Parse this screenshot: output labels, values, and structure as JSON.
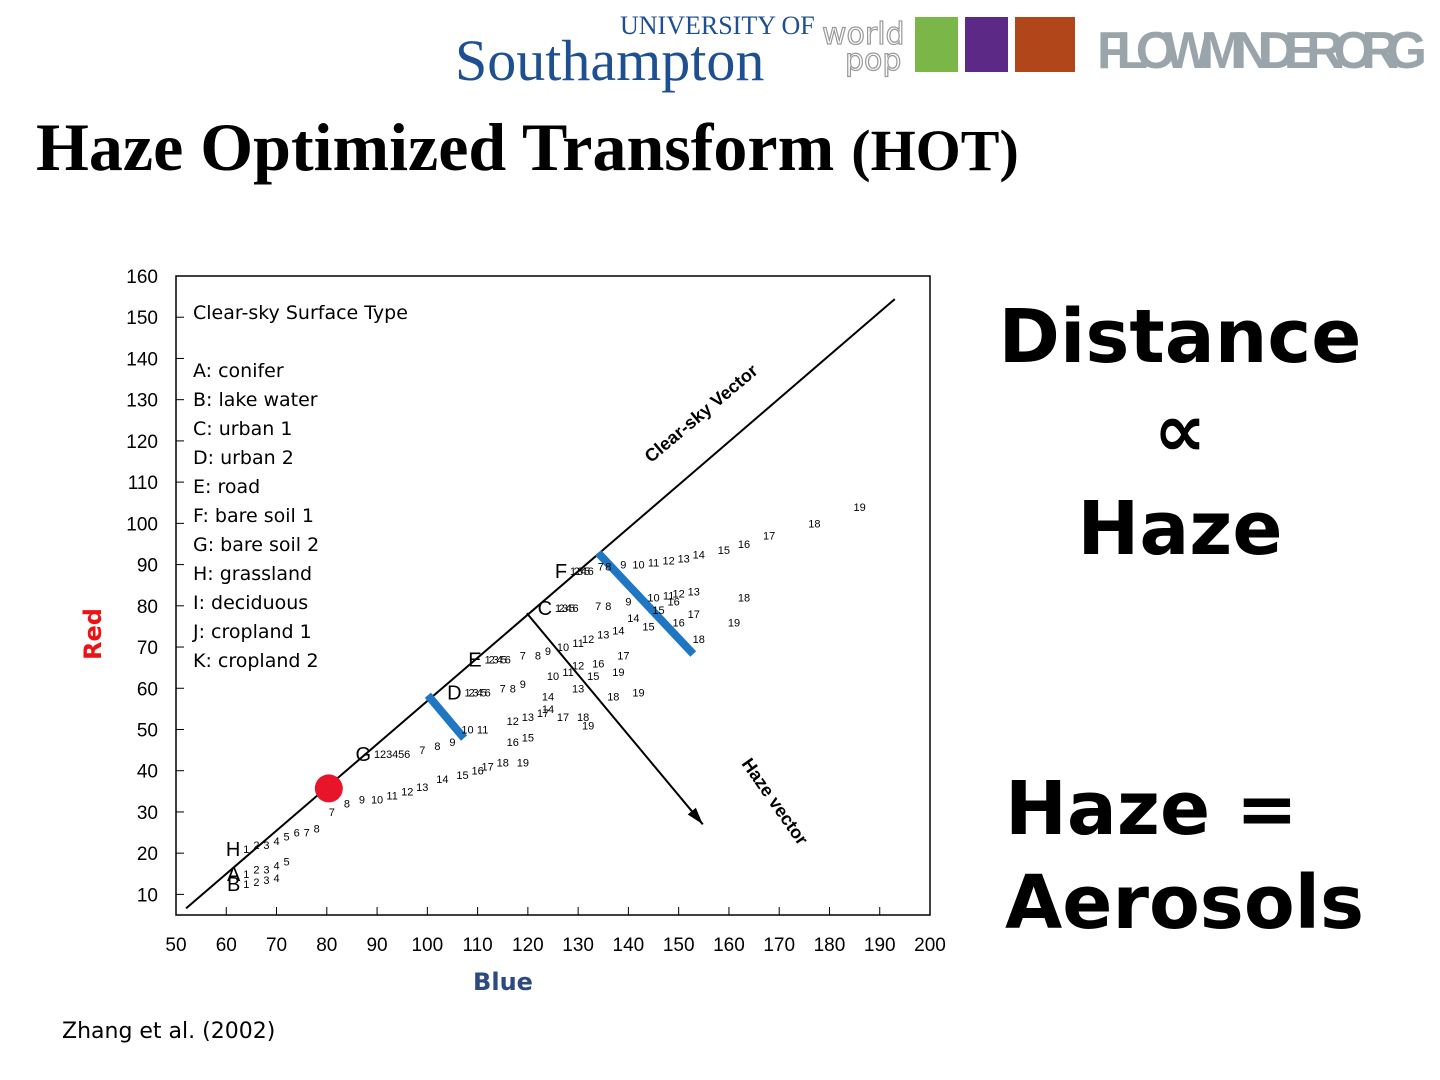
{
  "header": {
    "university_of": "UNIVERSITY OF",
    "southampton": "Southampton",
    "world": "world",
    "pop": "pop",
    "flowminder": "FLOWMINDER.ORG"
  },
  "title": "Haze Optimized Transform",
  "title_abbr": "(HOT)",
  "statement_1": [
    "Distance",
    "∝",
    "Haze"
  ],
  "statement_2": [
    "Haze =",
    "Aerosols"
  ],
  "citation": "Zhang et al. (2002)",
  "chart_data": {
    "type": "scatter",
    "xlabel": "Blue",
    "ylabel": "Red",
    "xlim": [
      50,
      200
    ],
    "ylim": [
      5,
      160
    ],
    "xticks": [
      50,
      60,
      70,
      80,
      90,
      100,
      110,
      120,
      130,
      140,
      150,
      160,
      170,
      180,
      190,
      200
    ],
    "yticks": [
      10,
      20,
      30,
      40,
      50,
      60,
      70,
      80,
      90,
      100,
      110,
      120,
      130,
      140,
      150,
      160
    ],
    "legend_title": "Clear-sky Surface Type",
    "legend_items": [
      "A: conifer",
      "B: lake water",
      "C: urban 1",
      "D: urban 2",
      "E: road",
      "F: bare soil 1",
      "G: bare soil 2",
      "H: grassland",
      "I: deciduous",
      "J: cropland 1",
      "K: cropland 2"
    ],
    "series": [
      {
        "name": "F",
        "labels": [
          "1",
          "2",
          "3",
          "4",
          "5",
          "6",
          "7",
          "8",
          "9",
          "10",
          "11",
          "12",
          "13",
          "14",
          "15",
          "16",
          "17",
          "18",
          "19"
        ],
        "x": [
          129,
          129.7,
          130.4,
          131.1,
          131.8,
          132.5,
          134.5,
          136,
          139,
          142,
          145,
          148,
          151,
          154,
          159,
          163,
          168,
          177,
          186
        ],
        "values": [
          88.5,
          88.5,
          88.5,
          88.5,
          88.5,
          88.5,
          89.5,
          89.5,
          90,
          90,
          90.5,
          91,
          91.5,
          92.5,
          93.5,
          95,
          97,
          100,
          104
        ]
      },
      {
        "name": "C",
        "labels": [
          "1",
          "2",
          "3",
          "4",
          "5",
          "6",
          "7",
          "8",
          "9",
          "10",
          "11",
          "12",
          "13",
          "14",
          "15",
          "16",
          "17",
          "18",
          "19"
        ],
        "x": [
          126,
          126.7,
          127.4,
          128.1,
          128.8,
          129.5,
          134,
          136,
          140,
          145,
          148,
          150,
          153,
          141,
          146,
          149,
          153,
          163,
          161
        ],
        "values": [
          79.5,
          79.5,
          79.5,
          79.5,
          79.5,
          79.5,
          80,
          80,
          81,
          82,
          82.5,
          83,
          83.5,
          77,
          79,
          81,
          78,
          82,
          76
        ]
      },
      {
        "name": "E",
        "labels": [
          "1",
          "2",
          "3",
          "4",
          "5",
          "6",
          "7",
          "8",
          "9",
          "10",
          "11",
          "12",
          "13",
          "14",
          "15",
          "16",
          "17",
          "18",
          "19"
        ],
        "x": [
          112,
          112.8,
          113.6,
          114.4,
          115.2,
          116,
          119,
          122,
          124,
          127,
          130,
          132,
          135,
          138,
          144,
          150,
          139,
          154,
          138
        ],
        "values": [
          67,
          67,
          67,
          67,
          67,
          67,
          68,
          68,
          69,
          70,
          71,
          72,
          73,
          74,
          75,
          76,
          68,
          72,
          64
        ]
      },
      {
        "name": "D",
        "labels": [
          "1",
          "2",
          "3",
          "4",
          "5",
          "6",
          "7",
          "8",
          "9",
          "10",
          "11",
          "12",
          "13",
          "14",
          "15",
          "16",
          "17",
          "18",
          "19"
        ],
        "x": [
          108,
          108.8,
          109.6,
          110.4,
          111.2,
          112,
          115,
          117,
          119,
          125,
          128,
          130,
          130,
          124,
          133,
          134,
          127,
          137,
          142
        ],
        "values": [
          59,
          59,
          59,
          59,
          59,
          59,
          60,
          60,
          61,
          63,
          64,
          65.5,
          60,
          58,
          63,
          66,
          53,
          58,
          59
        ]
      },
      {
        "name": "G",
        "labels": [
          "1",
          "2",
          "3",
          "4",
          "5",
          "6",
          "7",
          "8",
          "9",
          "10",
          "11",
          "12",
          "13",
          "14",
          "15",
          "16",
          "17",
          "18",
          "19"
        ],
        "x": [
          90,
          91.2,
          92.4,
          93.6,
          94.8,
          96,
          99,
          102,
          105,
          108,
          111,
          117,
          120,
          124,
          120,
          117,
          123,
          131,
          132
        ],
        "values": [
          44,
          44,
          44,
          44,
          44,
          44,
          45,
          46,
          47,
          50,
          50,
          52,
          53,
          55,
          48,
          47,
          54,
          53,
          51
        ]
      },
      {
        "labels": [
          "7",
          "8",
          "9",
          "10",
          "11",
          "12",
          "13",
          "14",
          "15",
          "16",
          "17",
          "18",
          "19"
        ],
        "x": [
          81,
          84,
          87,
          90,
          93,
          96,
          99,
          103,
          107,
          110,
          112,
          115,
          119
        ],
        "values": [
          30,
          32,
          33,
          33,
          34,
          35,
          36,
          38,
          39,
          40,
          41,
          42,
          42
        ]
      },
      {
        "name": "H",
        "labels": [
          "1",
          "2",
          "3",
          "4",
          "5",
          "6",
          "7",
          "8"
        ],
        "x": [
          64,
          66,
          68,
          70,
          72,
          74,
          76,
          78
        ],
        "values": [
          21,
          22,
          22,
          23,
          24,
          25,
          25,
          26
        ]
      },
      {
        "name": "A",
        "labels": [
          "1",
          "2",
          "3",
          "4",
          "5"
        ],
        "x": [
          64,
          66,
          68,
          70,
          72
        ],
        "values": [
          15,
          16,
          16,
          17,
          18
        ]
      },
      {
        "name": "B",
        "labels": [
          "1",
          "2",
          "3",
          "4"
        ],
        "x": [
          64,
          66,
          68,
          70
        ],
        "values": [
          12.5,
          13,
          13.5,
          14
        ]
      }
    ],
    "lines": [
      {
        "name": "Clear-sky Vector",
        "color": "#000000",
        "x": [
          52,
          193
        ],
        "values": [
          6.6,
          154.4
        ]
      },
      {
        "name": "Haze vector",
        "color": "#000000",
        "arrow": true,
        "x": [
          119.8,
          154.8
        ],
        "values": [
          78.2,
          27
        ]
      },
      {
        "color": "#1f77c4",
        "x": [
          100.1,
          107.3
        ],
        "values": [
          58.3,
          47.9
        ]
      },
      {
        "color": "#1f77c4",
        "x": [
          134,
          152.9
        ],
        "values": [
          92.8,
          68.3
        ]
      }
    ],
    "markers": [
      {
        "color": "#e8142a",
        "x": 80.4,
        "value": 35.7
      }
    ]
  }
}
